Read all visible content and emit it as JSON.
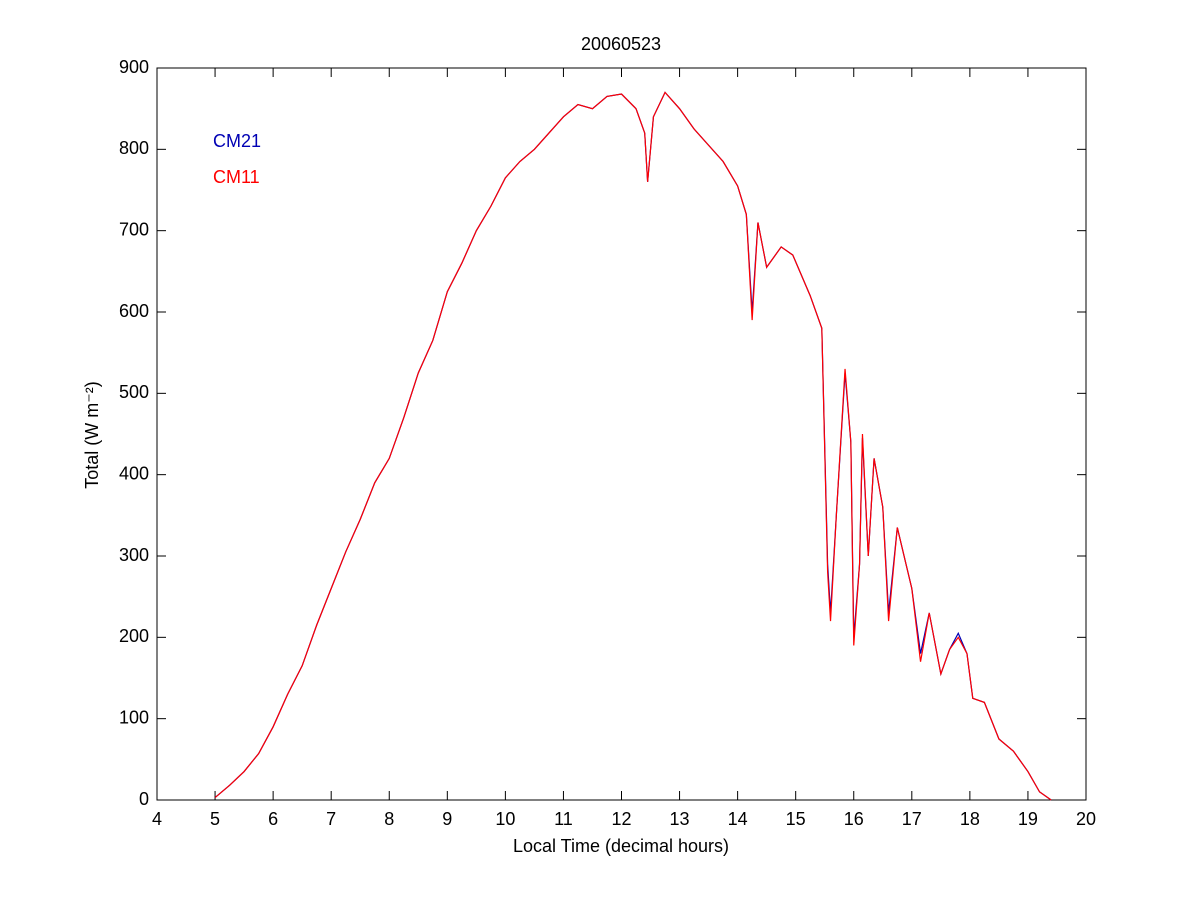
{
  "chart_data": {
    "type": "line",
    "title": "20060523",
    "xlabel": "Local Time (decimal hours)",
    "ylabel": "Total (W m⁻²)",
    "x": [
      5.0,
      5.25,
      5.5,
      5.75,
      6.0,
      6.25,
      6.5,
      6.75,
      7.0,
      7.25,
      7.5,
      7.75,
      8.0,
      8.25,
      8.5,
      8.75,
      9.0,
      9.25,
      9.5,
      9.75,
      10.0,
      10.25,
      10.5,
      10.75,
      11.0,
      11.25,
      11.5,
      11.75,
      12.0,
      12.25,
      12.4,
      12.45,
      12.55,
      12.75,
      13.0,
      13.25,
      13.5,
      13.75,
      14.0,
      14.15,
      14.25,
      14.35,
      14.5,
      14.75,
      14.95,
      15.25,
      15.45,
      15.55,
      15.6,
      15.7,
      15.85,
      15.95,
      16.0,
      16.1,
      16.15,
      16.25,
      16.35,
      16.5,
      16.6,
      16.75,
      16.9,
      17.0,
      17.15,
      17.3,
      17.5,
      17.65,
      17.8,
      17.95,
      18.05,
      18.25,
      18.5,
      18.75,
      19.0,
      19.2,
      19.4
    ],
    "series": [
      {
        "name": "CM21",
        "color": "#0000b4",
        "values": [
          3,
          18,
          35,
          57,
          90,
          130,
          165,
          215,
          260,
          305,
          345,
          390,
          420,
          470,
          525,
          565,
          625,
          660,
          700,
          730,
          765,
          785,
          800,
          820,
          840,
          855,
          850,
          865,
          868,
          850,
          820,
          760,
          840,
          870,
          850,
          825,
          805,
          785,
          755,
          720,
          600,
          710,
          655,
          680,
          670,
          620,
          580,
          290,
          230,
          350,
          525,
          440,
          200,
          290,
          445,
          300,
          420,
          360,
          230,
          335,
          290,
          260,
          180,
          230,
          155,
          185,
          205,
          180,
          125,
          120,
          75,
          60,
          35,
          10,
          0
        ]
      },
      {
        "name": "CM11",
        "color": "#ff0000",
        "values": [
          3,
          18,
          35,
          57,
          90,
          130,
          165,
          215,
          260,
          305,
          345,
          390,
          420,
          470,
          525,
          565,
          625,
          660,
          700,
          730,
          765,
          785,
          800,
          820,
          840,
          855,
          850,
          865,
          868,
          850,
          820,
          760,
          840,
          870,
          850,
          825,
          805,
          785,
          755,
          720,
          590,
          710,
          655,
          680,
          670,
          620,
          580,
          280,
          220,
          350,
          530,
          440,
          190,
          290,
          450,
          300,
          420,
          360,
          220,
          335,
          290,
          260,
          170,
          230,
          155,
          185,
          200,
          180,
          125,
          120,
          75,
          60,
          35,
          10,
          0
        ]
      }
    ],
    "xlim": [
      4,
      20
    ],
    "xticks": [
      4,
      5,
      6,
      7,
      8,
      9,
      10,
      11,
      12,
      13,
      14,
      15,
      16,
      17,
      18,
      19,
      20
    ],
    "ylim": [
      0,
      900
    ],
    "yticks": [
      0,
      100,
      200,
      300,
      400,
      500,
      600,
      700,
      800,
      900
    ]
  }
}
